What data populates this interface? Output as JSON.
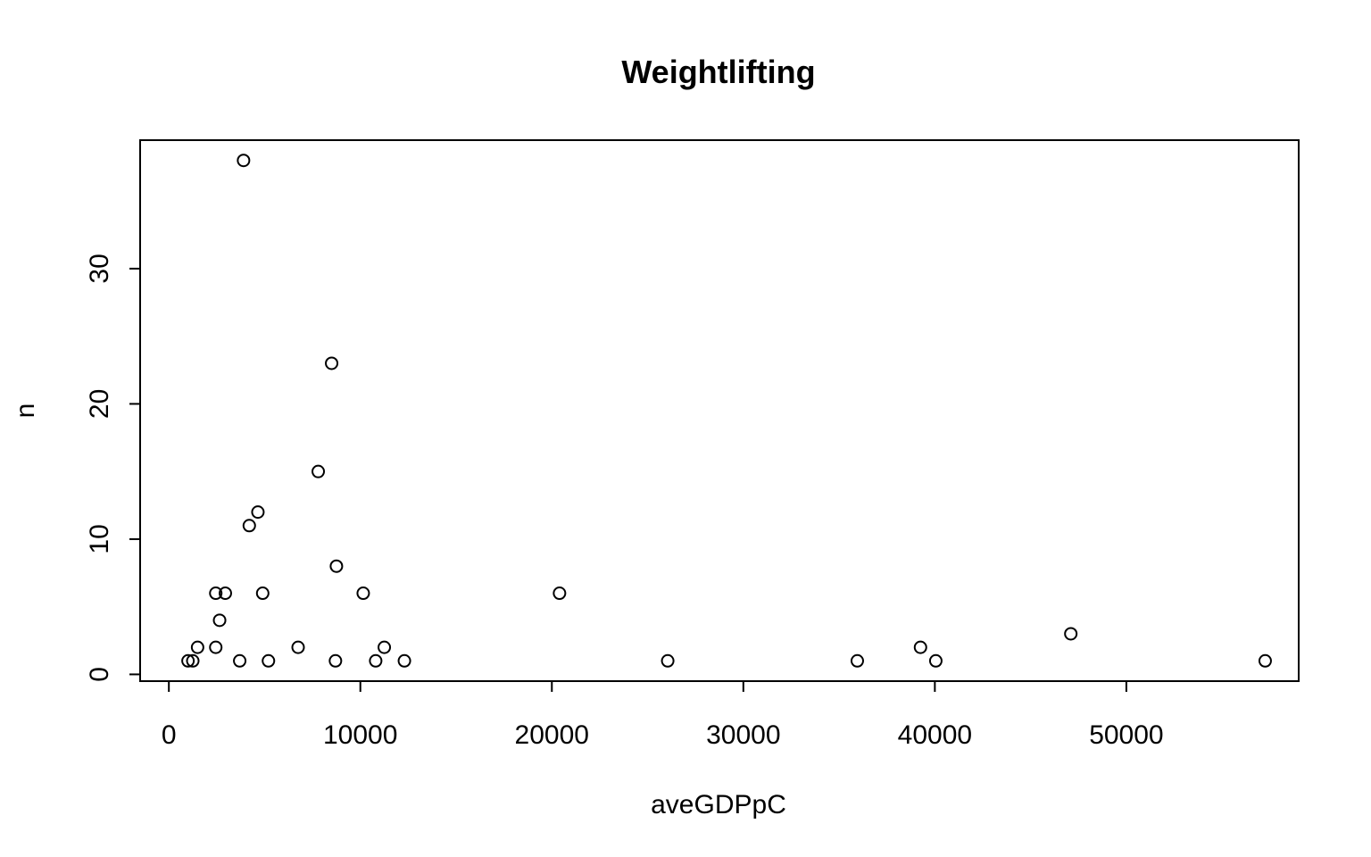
{
  "chart_data": {
    "type": "scatter",
    "title": "Weightlifting",
    "xlabel": "aveGDPpC",
    "ylabel": "n",
    "xlim": [
      -1500,
      59000
    ],
    "ylim": [
      -0.5,
      39.5
    ],
    "x_ticks": [
      0,
      10000,
      20000,
      30000,
      40000,
      50000
    ],
    "x_tick_labels": [
      "0",
      "10000",
      "20000",
      "30000",
      "40000",
      "50000"
    ],
    "y_ticks": [
      0,
      10,
      20,
      30
    ],
    "y_tick_labels": [
      "0",
      "10",
      "20",
      "30"
    ],
    "grid": false,
    "legend": "none",
    "marker": "open-circle",
    "points": [
      {
        "x": 3900,
        "y": 38
      },
      {
        "x": 8500,
        "y": 23
      },
      {
        "x": 7800,
        "y": 15
      },
      {
        "x": 4650,
        "y": 12
      },
      {
        "x": 4200,
        "y": 11
      },
      {
        "x": 8750,
        "y": 8
      },
      {
        "x": 2450,
        "y": 6
      },
      {
        "x": 2950,
        "y": 6
      },
      {
        "x": 4900,
        "y": 6
      },
      {
        "x": 10150,
        "y": 6
      },
      {
        "x": 20400,
        "y": 6
      },
      {
        "x": 2650,
        "y": 4
      },
      {
        "x": 47100,
        "y": 3
      },
      {
        "x": 1500,
        "y": 2
      },
      {
        "x": 2450,
        "y": 2
      },
      {
        "x": 6750,
        "y": 2
      },
      {
        "x": 11250,
        "y": 2
      },
      {
        "x": 39250,
        "y": 2
      },
      {
        "x": 1000,
        "y": 1
      },
      {
        "x": 1250,
        "y": 1
      },
      {
        "x": 3700,
        "y": 1
      },
      {
        "x": 5200,
        "y": 1
      },
      {
        "x": 8700,
        "y": 1
      },
      {
        "x": 10800,
        "y": 1
      },
      {
        "x": 12300,
        "y": 1
      },
      {
        "x": 26050,
        "y": 1
      },
      {
        "x": 35950,
        "y": 1
      },
      {
        "x": 40050,
        "y": 1
      },
      {
        "x": 57250,
        "y": 1
      }
    ]
  }
}
